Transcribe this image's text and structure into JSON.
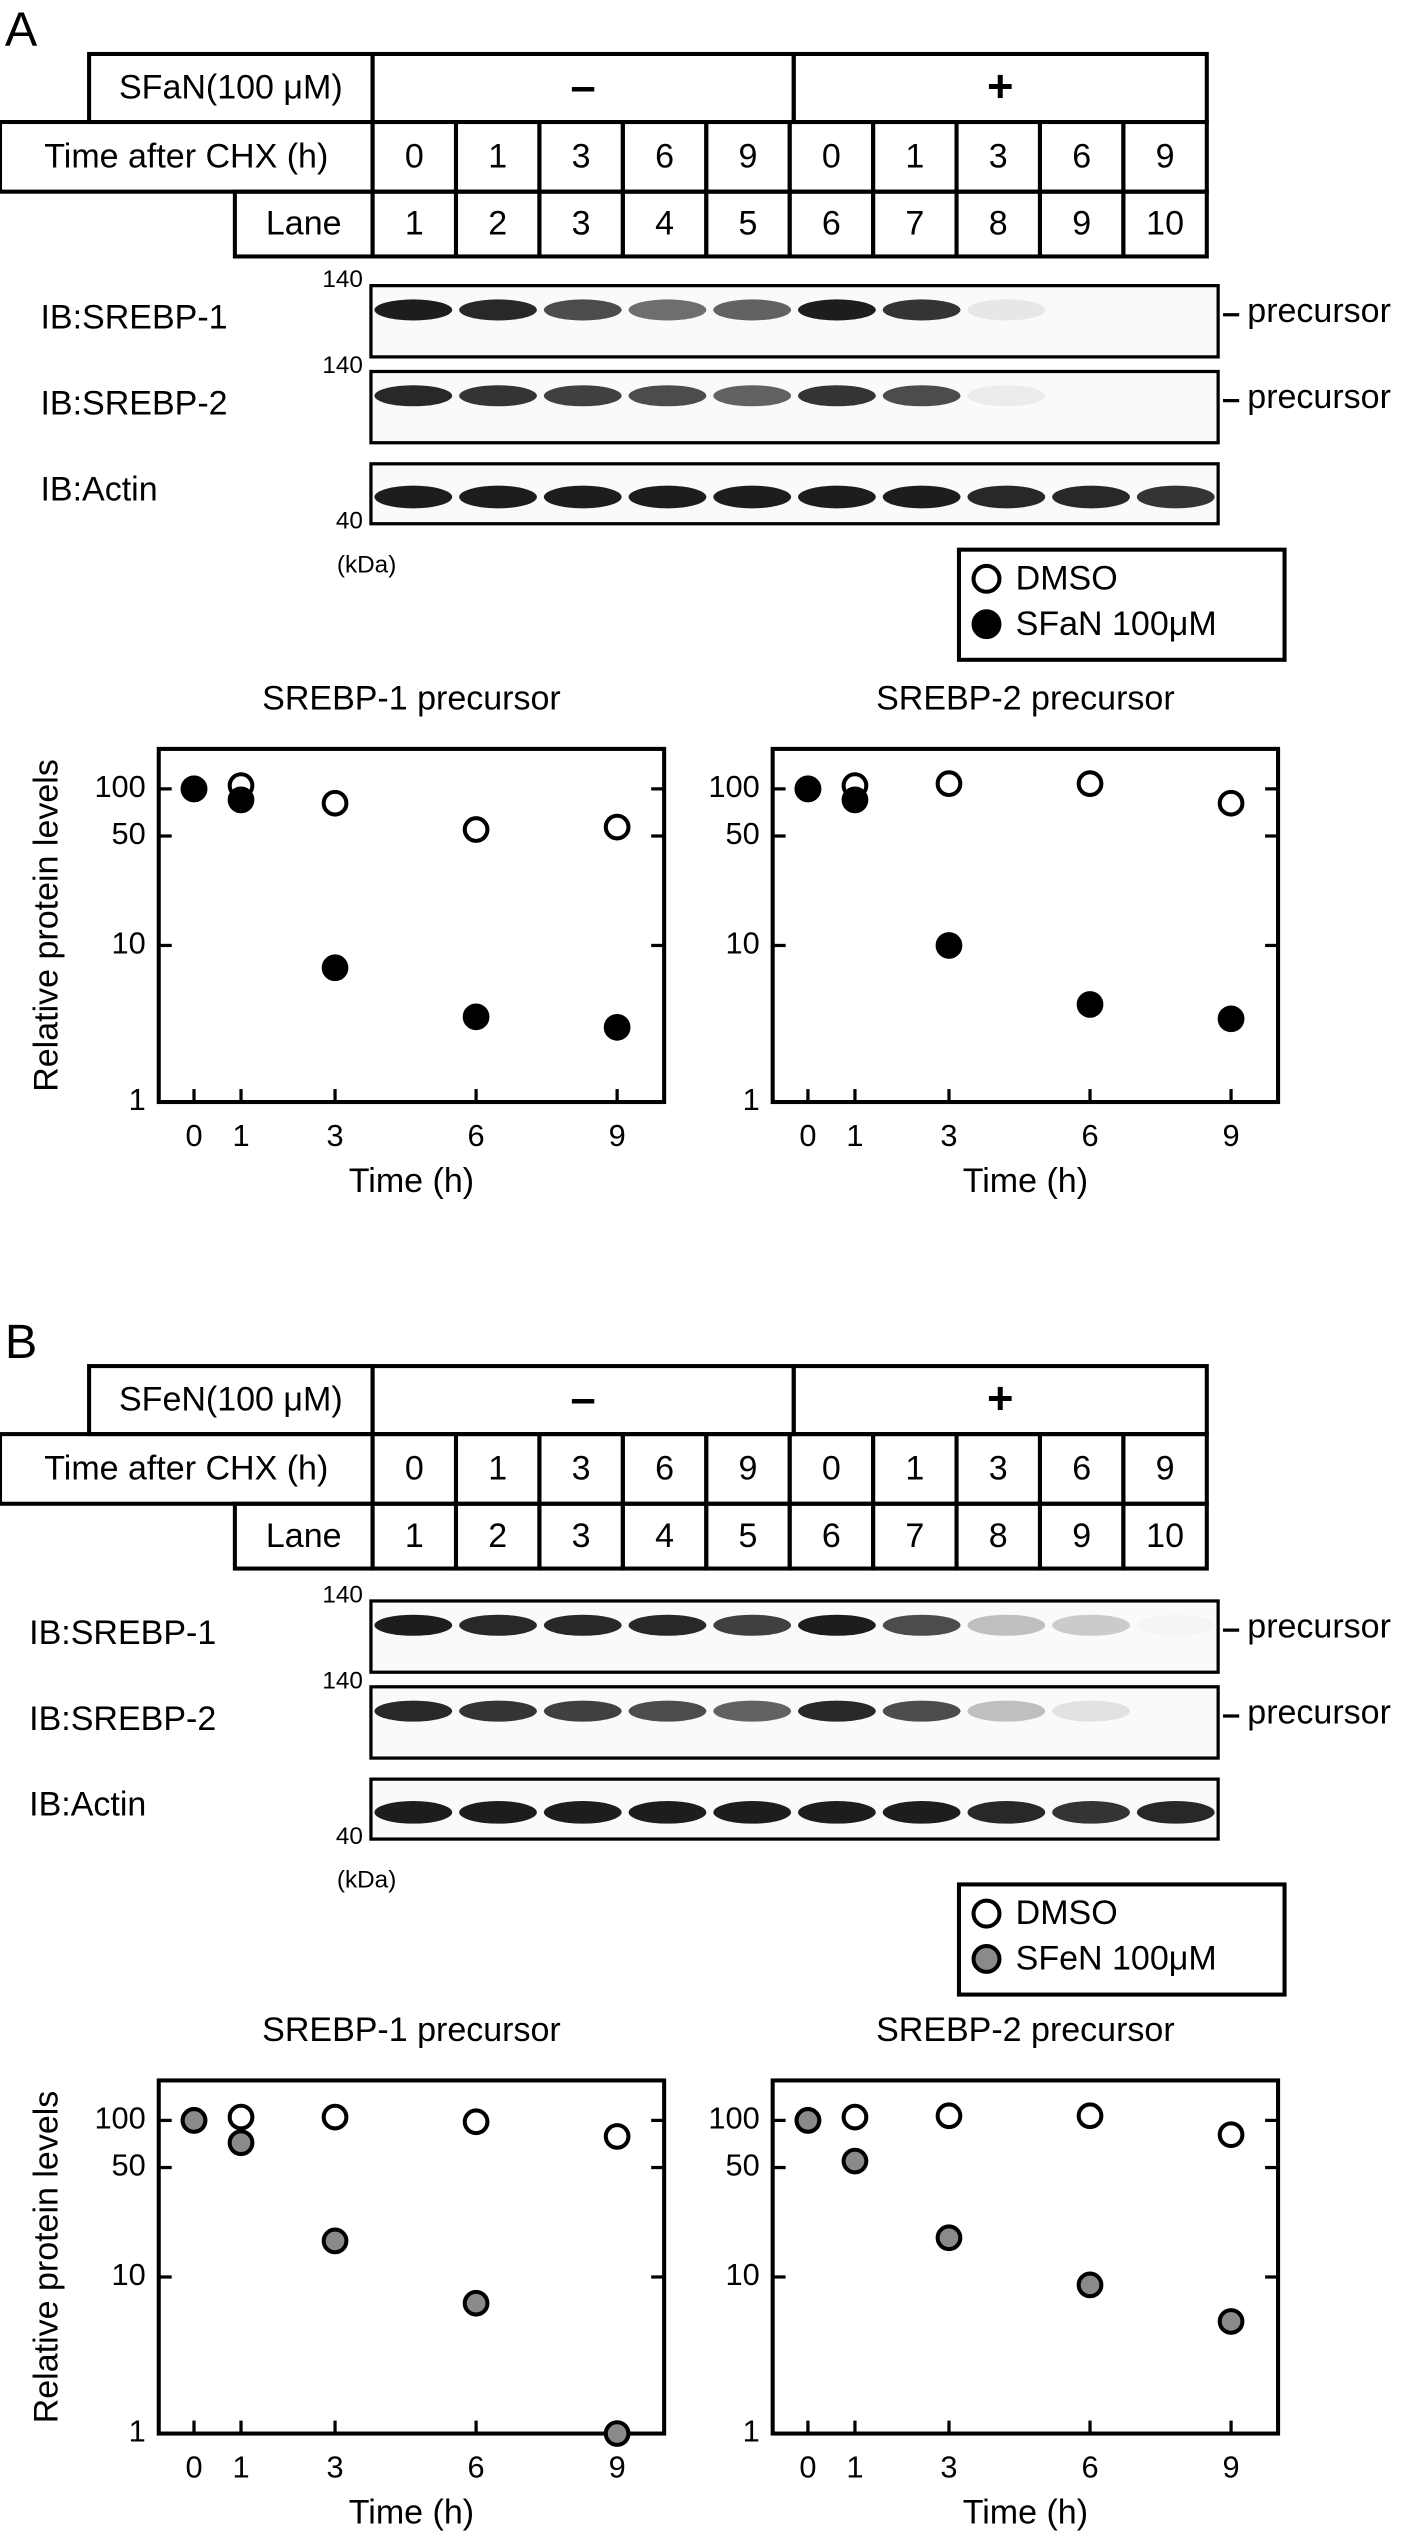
{
  "panels": [
    {
      "letter": "A",
      "table": {
        "rows": [
          [
            "SFaN(100 μM)",
            "–",
            "+"
          ],
          [
            "Time after CHX (h)",
            "0",
            "1",
            "3",
            "6",
            "9",
            "0",
            "1",
            "3",
            "6",
            "9"
          ],
          [
            "Lane",
            "1",
            "2",
            "3",
            "4",
            "5",
            "6",
            "7",
            "8",
            "9",
            "10"
          ]
        ]
      },
      "blots": [
        {
          "label": "IB:SREBP-1",
          "marker": "140",
          "band": "precursor"
        },
        {
          "label": "IB:SREBP-2",
          "marker": "140",
          "band": "precursor"
        },
        {
          "label": "IB:Actin",
          "marker": "40"
        }
      ],
      "unit": "(kDa)"
    },
    {
      "letter": "B",
      "table": {
        "rows": [
          [
            "SFeN(100 μM)",
            "–",
            "+"
          ],
          [
            "Time after CHX (h)",
            "0",
            "1",
            "3",
            "6",
            "9",
            "0",
            "1",
            "3",
            "6",
            "9"
          ],
          [
            "Lane",
            "1",
            "2",
            "3",
            "4",
            "5",
            "6",
            "7",
            "8",
            "9",
            "10"
          ]
        ]
      },
      "blots": [
        {
          "label": "IB:SREBP-1",
          "marker": "140",
          "band": "precursor"
        },
        {
          "label": "IB:SREBP-2",
          "marker": "140",
          "band": "precursor"
        },
        {
          "label": "IB:Actin",
          "marker": "40"
        }
      ],
      "unit": "(kDa)"
    }
  ],
  "chart_data": [
    {
      "type": "scatter",
      "title": "SREBP-1 precursor",
      "x_label": "Time (h)",
      "y_label": "Relative protein levels",
      "x": [
        0,
        1,
        3,
        6,
        9
      ],
      "log_y": true,
      "legend": true,
      "series": [
        {
          "name": "DMSO",
          "color": "#ffffff",
          "values": [
            100,
            105,
            81,
            55,
            57
          ]
        },
        {
          "name": "SFaN 100μM",
          "color": "#000000",
          "values": [
            100,
            85,
            7.2,
            3.5,
            3.0
          ]
        }
      ],
      "xlim": [
        -0.75,
        10
      ],
      "ylim": [
        1,
        180
      ],
      "xticks": [
        0,
        1,
        3,
        6,
        9
      ],
      "yticks": [
        1,
        10,
        50,
        100
      ]
    },
    {
      "type": "scatter",
      "title": "SREBP-2 precursor",
      "x_label": "Time (h)",
      "x": [
        0,
        1,
        3,
        6,
        9
      ],
      "log_y": true,
      "series": [
        {
          "name": "DMSO",
          "color": "#ffffff",
          "values": [
            100,
            105,
            108,
            108,
            81
          ]
        },
        {
          "name": "SFaN 100μM",
          "color": "#000000",
          "values": [
            100,
            85,
            10,
            4.2,
            3.4
          ]
        }
      ],
      "xlim": [
        -0.75,
        10
      ],
      "ylim": [
        1,
        180
      ],
      "xticks": [
        0,
        1,
        3,
        6,
        9
      ],
      "yticks": [
        1,
        10,
        50,
        100
      ]
    },
    {
      "type": "scatter",
      "title": "SREBP-1 precursor",
      "x_label": "Time (h)",
      "y_label": "Relative protein levels",
      "x": [
        0,
        1,
        3,
        6,
        9
      ],
      "log_y": true,
      "legend": true,
      "series": [
        {
          "name": "DMSO",
          "color": "#ffffff",
          "values": [
            100,
            105,
            105,
            98,
            79
          ]
        },
        {
          "name": "SFeN 100μM",
          "color": "#8a8a8a",
          "values": [
            100,
            72,
            17,
            6.8,
            1.0
          ]
        }
      ],
      "xlim": [
        -0.75,
        10
      ],
      "ylim": [
        1,
        180
      ],
      "xticks": [
        0,
        1,
        3,
        6,
        9
      ],
      "yticks": [
        1,
        10,
        50,
        100
      ]
    },
    {
      "type": "scatter",
      "title": "SREBP-2 precursor",
      "x_label": "Time (h)",
      "x": [
        0,
        1,
        3,
        6,
        9
      ],
      "log_y": true,
      "series": [
        {
          "name": "DMSO",
          "color": "#ffffff",
          "values": [
            100,
            105,
            107,
            107,
            81
          ]
        },
        {
          "name": "SFeN 100μM",
          "color": "#8a8a8a",
          "values": [
            100,
            55,
            17.8,
            8.9,
            5.2
          ]
        }
      ],
      "xlim": [
        -0.75,
        10
      ],
      "ylim": [
        1,
        180
      ],
      "xticks": [
        0,
        1,
        3,
        6,
        9
      ],
      "yticks": [
        1,
        10,
        50,
        100
      ]
    }
  ]
}
